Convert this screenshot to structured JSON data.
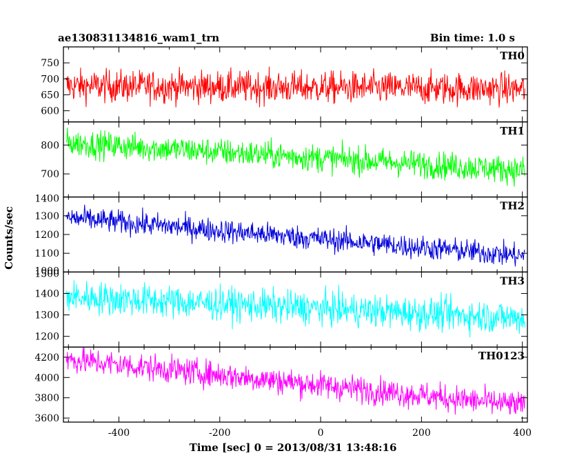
{
  "header": {
    "title": "ae130831134816_wam1_trn",
    "bin_time": "Bin time: 1.0 s"
  },
  "chart_data": {
    "type": "line",
    "xlabel": "Time [sec] 0 = 2013/08/31 13:48:16",
    "ylabel": "Counts/sec",
    "xlim": [
      -510,
      410
    ],
    "x_start": -505,
    "x_end": 405,
    "x_ticks": [
      -400,
      -200,
      0,
      200,
      400
    ],
    "x_tick_labels": [
      "-400",
      "-200",
      "0",
      "200",
      "400"
    ],
    "panels": [
      {
        "name": "TH0",
        "color": "#ff0000",
        "ylim": [
          565,
          800
        ],
        "y_ticks": [
          600,
          650,
          700,
          750
        ],
        "y_tick_labels": [
          "600",
          "650",
          "700",
          "750"
        ],
        "mean_start": 678,
        "mean_end": 668,
        "spread": 36
      },
      {
        "name": "TH1",
        "color": "#00ff00",
        "ylim": [
          620,
          880
        ],
        "y_ticks": [
          700,
          800
        ],
        "y_tick_labels": [
          "700",
          "800"
        ],
        "mean_start": 808,
        "mean_end": 712,
        "spread": 34
      },
      {
        "name": "TH2",
        "color": "#0000dd",
        "ylim": [
          1000,
          1400
        ],
        "y_ticks": [
          1100,
          1200,
          1300,
          1400
        ],
        "y_tick_labels": [
          "1000",
          "1100",
          "1200",
          "1300",
          "1400"
        ],
        "label_ticks": [
          1000,
          1100,
          1200,
          1300,
          1400
        ],
        "mean_start": 1290,
        "mean_end": 1085,
        "spread": 45
      },
      {
        "name": "TH3",
        "color": "#00ffff",
        "ylim": [
          1150,
          1500
        ],
        "y_ticks": [
          1200,
          1300,
          1400,
          1500
        ],
        "y_tick_labels": [
          "1200",
          "1300",
          "1400",
          "1500"
        ],
        "label_ticks": [
          1200,
          1300,
          1400,
          1500
        ],
        "mean_start": 1385,
        "mean_end": 1285,
        "spread": 55
      },
      {
        "name": "TH0123",
        "color": "#ff00ff",
        "ylim": [
          3560,
          4300
        ],
        "y_ticks": [
          3600,
          3800,
          4000,
          4200
        ],
        "y_tick_labels": [
          "3600",
          "3800",
          "4000",
          "4200"
        ],
        "mean_start": 4180,
        "mean_end": 3720,
        "spread": 95
      }
    ]
  }
}
